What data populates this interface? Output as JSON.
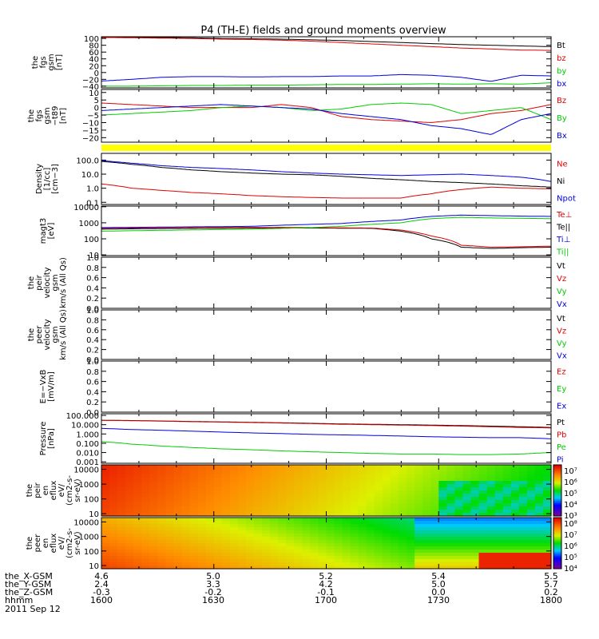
{
  "title": "P4 (TH-E) fields and ground moments overview",
  "date": "2011 Sep 12",
  "colors": {
    "black": "#000000",
    "red": "#dd0000",
    "green": "#00cc00",
    "blue": "#0000dd",
    "yellow": "#ffff00"
  },
  "chart_data": {
    "type": "line",
    "time_axis": {
      "row_labels": [
        "the_X-GSM",
        "the_Y-GSM",
        "the_Z-GSM",
        "hhmm"
      ],
      "columns": [
        [
          "4.6",
          "2.4",
          "-0.3",
          "1600"
        ],
        [
          "5.0",
          "3.3",
          "-0.2",
          "1630"
        ],
        [
          "5.2",
          "4.2",
          "-0.1",
          "1700"
        ],
        [
          "5.4",
          "5.0",
          "0.0",
          "1730"
        ],
        [
          "5.5",
          "5.7",
          "0.2",
          "1800"
        ]
      ]
    },
    "panels": [
      {
        "id": "fgs",
        "ylabel": [
          "the",
          "fgs",
          "gsm",
          "[nT]"
        ],
        "ylim": [
          -45,
          105
        ],
        "ticks": [
          "100",
          "80",
          "60",
          "40",
          "20",
          "0",
          "−20",
          "−40"
        ],
        "tickvals": [
          100,
          80,
          60,
          40,
          20,
          0,
          -20,
          -40
        ],
        "legend": [
          {
            "name": "Bt",
            "color": "black"
          },
          {
            "name": "bz",
            "color": "red"
          },
          {
            "name": "by",
            "color": "green"
          },
          {
            "name": "bx",
            "color": "blue"
          }
        ],
        "series": [
          {
            "name": "Bt",
            "color": "black",
            "values": [
              104,
              104,
              103,
              102,
              100,
              99,
              98,
              96,
              94,
              91,
              88,
              85,
              82,
              80,
              78,
              76
            ]
          },
          {
            "name": "bz",
            "color": "red",
            "values": [
              103,
              102,
              101,
              100,
              98,
              97,
              95,
              92,
              88,
              84,
              80,
              76,
              72,
              69,
              66,
              65
            ]
          },
          {
            "name": "bx",
            "color": "blue",
            "values": [
              -25,
              -20,
              -14,
              -12,
              -12,
              -13,
              -12,
              -12,
              -10,
              -10,
              -6,
              -8,
              -14,
              -26,
              -8,
              -10
            ]
          },
          {
            "name": "by",
            "color": "green",
            "values": [
              -40,
              -40,
              -39,
              -38,
              -38,
              -37,
              -37,
              -36,
              -35,
              -35,
              -34,
              -33,
              -34,
              -33,
              -34,
              -30
            ]
          }
        ]
      },
      {
        "id": "fgs_dsl",
        "ylabel": [
          "the",
          "fgs",
          "gsm",
          "−t89",
          "[nT]"
        ],
        "ylim": [
          -23,
          12
        ],
        "ticks": [
          "10",
          "5",
          "0",
          "−5",
          "−10",
          "−15",
          "−20"
        ],
        "tickvals": [
          10,
          5,
          0,
          -5,
          -10,
          -15,
          -20
        ],
        "legend": [
          {
            "name": "Bz",
            "color": "red"
          },
          {
            "name": "By",
            "color": "green"
          },
          {
            "name": "Bx",
            "color": "blue"
          }
        ],
        "series": [
          {
            "name": "Bz",
            "color": "red",
            "values": [
              3,
              2,
              1,
              0,
              0,
              0,
              2,
              0,
              -6,
              -8,
              -9,
              -10,
              -8,
              -4,
              -2,
              2
            ]
          },
          {
            "name": "By",
            "color": "green",
            "values": [
              -5,
              -4,
              -3,
              -2,
              0,
              1,
              0,
              -2,
              -1,
              2,
              3,
              2,
              -4,
              -2,
              0,
              -8
            ]
          },
          {
            "name": "Bx",
            "color": "blue",
            "values": [
              -2,
              -1,
              0,
              1,
              2,
              1,
              0,
              -1,
              -4,
              -6,
              -8,
              -12,
              -14,
              -18,
              -8,
              -4
            ]
          }
        ]
      },
      {
        "id": "density",
        "ylabel": [
          "Density",
          "[1/cc]",
          "[cm−3]"
        ],
        "log": true,
        "ylim": [
          0.07,
          300
        ],
        "ticks": [
          "100.0",
          "10.0",
          "1.0",
          "0.1"
        ],
        "tickvals": [
          100,
          10,
          1,
          0.1
        ],
        "legend": [
          {
            "name": "Ne",
            "color": "red"
          },
          {
            "name": "Ni",
            "color": "black"
          },
          {
            "name": "Npot",
            "color": "blue"
          }
        ],
        "series": [
          {
            "name": "Ni",
            "color": "black",
            "values": [
              80,
              50,
              30,
              20,
              15,
              12,
              10,
              9,
              7,
              5,
              4,
              3,
              2.5,
              2,
              1.5,
              1.2
            ]
          },
          {
            "name": "Ne",
            "color": "red",
            "values": [
              2,
              1,
              0.7,
              0.5,
              0.4,
              0.3,
              0.25,
              0.22,
              0.2,
              0.2,
              0.2,
              0.4,
              0.8,
              1.2,
              1.0,
              0.9
            ]
          },
          {
            "name": "Npot",
            "color": "blue",
            "values": [
              90,
              60,
              40,
              30,
              25,
              20,
              15,
              12,
              10,
              9,
              8,
              9,
              10,
              8,
              6,
              3
            ]
          }
        ]
      },
      {
        "id": "temp",
        "ylabel": [
          "magt3",
          "[eV]"
        ],
        "log": true,
        "ylim": [
          9,
          11000
        ],
        "ticks": [
          "10000",
          "1000",
          "100",
          "10"
        ],
        "tickvals": [
          10000,
          1000,
          100,
          10
        ],
        "legend": [
          {
            "name": "Te⊥",
            "color": "red"
          },
          {
            "name": "Te||",
            "color": "black"
          },
          {
            "name": "Ti⊥",
            "color": "blue"
          },
          {
            "name": "Ti||",
            "color": "green"
          }
        ],
        "series": [
          {
            "name": "Te||",
            "color": "black",
            "values": [
              400,
              420,
              440,
              450,
              460,
              470,
              480,
              470,
              460,
              450,
              300,
              100,
              30,
              25,
              28,
              30
            ]
          },
          {
            "name": "Te⊥",
            "color": "red",
            "values": [
              450,
              470,
              480,
              490,
              500,
              510,
              520,
              500,
              480,
              470,
              350,
              150,
              40,
              30,
              32,
              35
            ]
          },
          {
            "name": "Ti⊥",
            "color": "blue",
            "values": [
              500,
              520,
              540,
              560,
              580,
              600,
              700,
              800,
              900,
              1200,
              1500,
              2500,
              3000,
              2800,
              2600,
              2500
            ]
          },
          {
            "name": "Ti||",
            "color": "green",
            "values": [
              300,
              320,
              340,
              360,
              380,
              400,
              450,
              500,
              600,
              800,
              1000,
              1800,
              2200,
              2000,
              1900,
              1800
            ]
          }
        ]
      },
      {
        "id": "peir_vel",
        "ylabel": [
          "the",
          "peir",
          "velocity",
          "gsm",
          "km/s (All Qs)"
        ],
        "ylim": [
          0,
          1
        ],
        "ticks": [
          "1.0",
          "0.8",
          "0.6",
          "0.4",
          "0.2",
          "0.0"
        ],
        "tickvals": [
          1,
          0.8,
          0.6,
          0.4,
          0.2,
          0
        ],
        "legend": [
          {
            "name": "Vt",
            "color": "black"
          },
          {
            "name": "Vz",
            "color": "red"
          },
          {
            "name": "Vy",
            "color": "green"
          },
          {
            "name": "Vx",
            "color": "blue"
          }
        ],
        "series": []
      },
      {
        "id": "peer_vel",
        "ylabel": [
          "the",
          "peer",
          "velocity",
          "gsm",
          "km/s (All Qs)"
        ],
        "ylim": [
          0,
          1
        ],
        "ticks": [
          "1.0",
          "0.8",
          "0.6",
          "0.4",
          "0.2",
          "0.0"
        ],
        "tickvals": [
          1,
          0.8,
          0.6,
          0.4,
          0.2,
          0
        ],
        "legend": [
          {
            "name": "Vt",
            "color": "black"
          },
          {
            "name": "Vz",
            "color": "red"
          },
          {
            "name": "Vy",
            "color": "green"
          },
          {
            "name": "Vx",
            "color": "blue"
          }
        ],
        "series": []
      },
      {
        "id": "efield",
        "ylabel": [
          "E=−VxB",
          "[mV/m]"
        ],
        "ylim": [
          0,
          1
        ],
        "ticks": [
          "1.0",
          "0.8",
          "0.6",
          "0.4",
          "0.2",
          "0.0"
        ],
        "tickvals": [
          1,
          0.8,
          0.6,
          0.4,
          0.2,
          0
        ],
        "legend": [
          {
            "name": "Ez",
            "color": "red"
          },
          {
            "name": "Ey",
            "color": "green"
          },
          {
            "name": "Ex",
            "color": "blue"
          }
        ],
        "series": []
      },
      {
        "id": "pressure",
        "ylabel": [
          "Pressure",
          "[nPa]"
        ],
        "log": true,
        "ylim": [
          0.0007,
          150
        ],
        "ticks": [
          "100.000",
          "10.000",
          "1.000",
          "0.100",
          "0.010",
          "0.001"
        ],
        "tickvals": [
          100,
          10,
          1,
          0.1,
          0.01,
          0.001
        ],
        "legend": [
          {
            "name": "Pt",
            "color": "black"
          },
          {
            "name": "Pb",
            "color": "red"
          },
          {
            "name": "Pe",
            "color": "green"
          },
          {
            "name": "Pi",
            "color": "blue"
          }
        ],
        "series": [
          {
            "name": "Pt",
            "color": "black",
            "values": [
              30,
              28,
              25,
              22,
              20,
              18,
              16,
              14,
              12,
              11,
              10,
              9,
              8,
              7,
              6,
              5
            ]
          },
          {
            "name": "Pb",
            "color": "red",
            "values": [
              29,
              27,
              24,
              21,
              19,
              17,
              15,
              13,
              11,
              10,
              9,
              8,
              7,
              6,
              5,
              4.5
            ]
          },
          {
            "name": "Pi",
            "color": "blue",
            "values": [
              4,
              3,
              2.5,
              2,
              1.6,
              1.3,
              1.1,
              0.9,
              0.8,
              0.7,
              0.6,
              0.5,
              0.45,
              0.4,
              0.4,
              0.3
            ]
          },
          {
            "name": "Pe",
            "color": "green",
            "values": [
              0.15,
              0.08,
              0.05,
              0.035,
              0.025,
              0.02,
              0.015,
              0.012,
              0.01,
              0.008,
              0.007,
              0.007,
              0.006,
              0.006,
              0.007,
              0.01
            ]
          }
        ]
      }
    ],
    "spectrograms": [
      {
        "id": "peir_en",
        "ylabel": [
          "the",
          "peir",
          "en",
          "eflux",
          "eV/",
          "(cm2-s-",
          "sr-eV)"
        ],
        "log": true,
        "ylim": [
          7,
          20000
        ],
        "ticks": [
          "10000",
          "1000",
          "100",
          "10"
        ],
        "tickvals": [
          10000,
          1000,
          100,
          10
        ],
        "colorbar": {
          "labels": [
            "10⁷",
            "10⁶",
            "10⁵",
            "10⁴",
            "10³"
          ]
        }
      },
      {
        "id": "peer_en",
        "ylabel": [
          "the",
          "peer",
          "en",
          "eflux",
          "eV/",
          "(cm2-s-",
          "sr-eV)"
        ],
        "log": true,
        "ylim": [
          6,
          20000
        ],
        "ticks": [
          "10000",
          "1000",
          "100",
          "10"
        ],
        "tickvals": [
          10000,
          1000,
          100,
          10
        ],
        "colorbar": {
          "labels": [
            "10⁸",
            "10⁷",
            "10⁶",
            "10⁵",
            "10⁴"
          ]
        }
      }
    ]
  }
}
